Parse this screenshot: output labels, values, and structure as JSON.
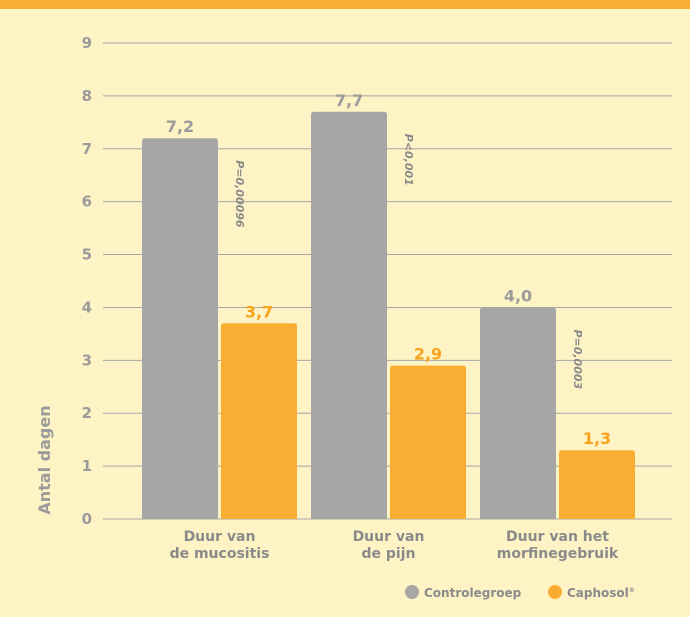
{
  "chart_data": {
    "type": "bar",
    "categories": [
      [
        "Duur van",
        "de mucositis"
      ],
      [
        "Duur van",
        "de pijn"
      ],
      [
        "Duur van het",
        "morfinegebruik"
      ]
    ],
    "series": [
      {
        "name": "Controlegroep",
        "values": [
          7.2,
          7.7,
          4.0
        ],
        "labels": [
          "7,2",
          "7,7",
          "4,0"
        ],
        "color": "#a6a6a6"
      },
      {
        "name": "Caphosol",
        "values": [
          3.7,
          2.9,
          1.3
        ],
        "labels": [
          "3,7",
          "2,9",
          "1,3"
        ],
        "color": "#f9ae33"
      }
    ],
    "p_values": [
      "P=0,00096",
      "P<0,001",
      "P=0,0003"
    ],
    "ylabel": "Antal dagen",
    "ylim": [
      0,
      9
    ],
    "yticks": [
      "0",
      "1",
      "2",
      "3",
      "4",
      "5",
      "6",
      "7",
      "8",
      "9"
    ],
    "grid": true,
    "legend_position": "bottom-right",
    "legend_registered_mark": "®"
  },
  "colors": {
    "top_band": "#f9ae33",
    "background": "#fdf3c4",
    "grid": "#a6a6a6"
  }
}
